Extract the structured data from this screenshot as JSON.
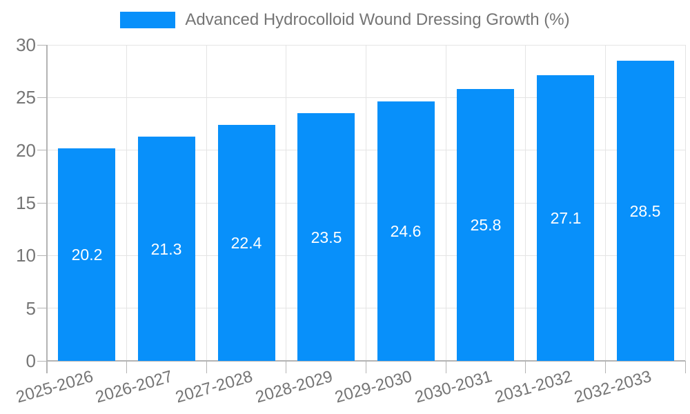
{
  "chart_data": {
    "type": "bar",
    "title": "",
    "legend": "Advanced Hydrocolloid Wound Dressing Growth (%)",
    "legend_position": "top-center",
    "categories": [
      "2025-2026",
      "2026-2027",
      "2027-2028",
      "2028-2029",
      "2029-2030",
      "2030-2031",
      "2031-2032",
      "2032-2033"
    ],
    "series": [
      {
        "name": "Advanced Hydrocolloid Wound Dressing Growth (%)",
        "values": [
          20.2,
          21.3,
          22.4,
          23.5,
          24.6,
          25.8,
          27.1,
          28.5
        ]
      }
    ],
    "value_labels": [
      "20.2",
      "21.3",
      "22.4",
      "23.5",
      "24.6",
      "25.8",
      "27.1",
      "28.5"
    ],
    "xlabel": "",
    "ylabel": "",
    "ylim": [
      0,
      30
    ],
    "yticks": [
      0,
      5,
      10,
      15,
      20,
      25,
      30
    ],
    "grid": true,
    "x_label_rotation_deg": -16
  },
  "colors": {
    "bar": "#0890fa",
    "bar_value_text": "#ffffff",
    "grid": "#e4e4e4",
    "axis": "#b3b3b3",
    "tick_text": "#757575",
    "legend_text": "#757575",
    "background": "#ffffff"
  }
}
